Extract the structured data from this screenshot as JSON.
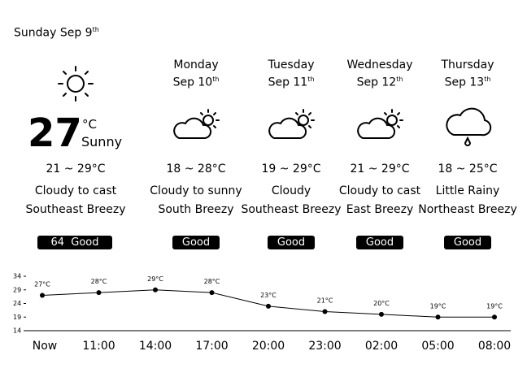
{
  "header": {
    "date": "Sunday Sep 9",
    "suffix": "th"
  },
  "today": {
    "temp": "27",
    "unit": "°C",
    "condition": "Sunny",
    "range": "21 ~ 29°C",
    "desc": "Cloudy to cast",
    "wind": "Southeast Breezy",
    "aqi": "64",
    "quality": "Good"
  },
  "forecast": [
    {
      "day": "Monday",
      "date": "Sep 10",
      "suffix": "th",
      "range": "18 ~ 28°C",
      "desc": "Cloudy to sunny",
      "wind": "South Breezy",
      "quality": "Good"
    },
    {
      "day": "Tuesday",
      "date": "Sep 11",
      "suffix": "th",
      "range": "19 ~ 29°C",
      "desc": "Cloudy",
      "wind": "Southeast Breezy",
      "quality": "Good"
    },
    {
      "day": "Wednesday",
      "date": "Sep 12",
      "suffix": "th",
      "range": "21 ~ 29°C",
      "desc": "Cloudy to cast",
      "wind": "East Breezy",
      "quality": "Good"
    },
    {
      "day": "Thursday",
      "date": "Sep 13",
      "suffix": "th",
      "range": "18 ~ 25°C",
      "desc": "Little Rainy",
      "wind": "Northeast Breezy",
      "quality": "Good"
    }
  ],
  "chart_data": {
    "type": "line",
    "categories": [
      "Now",
      "11:00",
      "14:00",
      "17:00",
      "20:00",
      "23:00",
      "02:00",
      "05:00",
      "08:00"
    ],
    "values": [
      27,
      28,
      29,
      28,
      23,
      21,
      20,
      19,
      19
    ],
    "value_labels": [
      "27°C",
      "28°C",
      "29°C",
      "28°C",
      "23°C",
      "21°C",
      "20°C",
      "19°C",
      "19°C"
    ],
    "color": "#000000",
    "ylim": [
      14,
      34
    ],
    "yticks": [
      14,
      19,
      24,
      29,
      34
    ]
  }
}
